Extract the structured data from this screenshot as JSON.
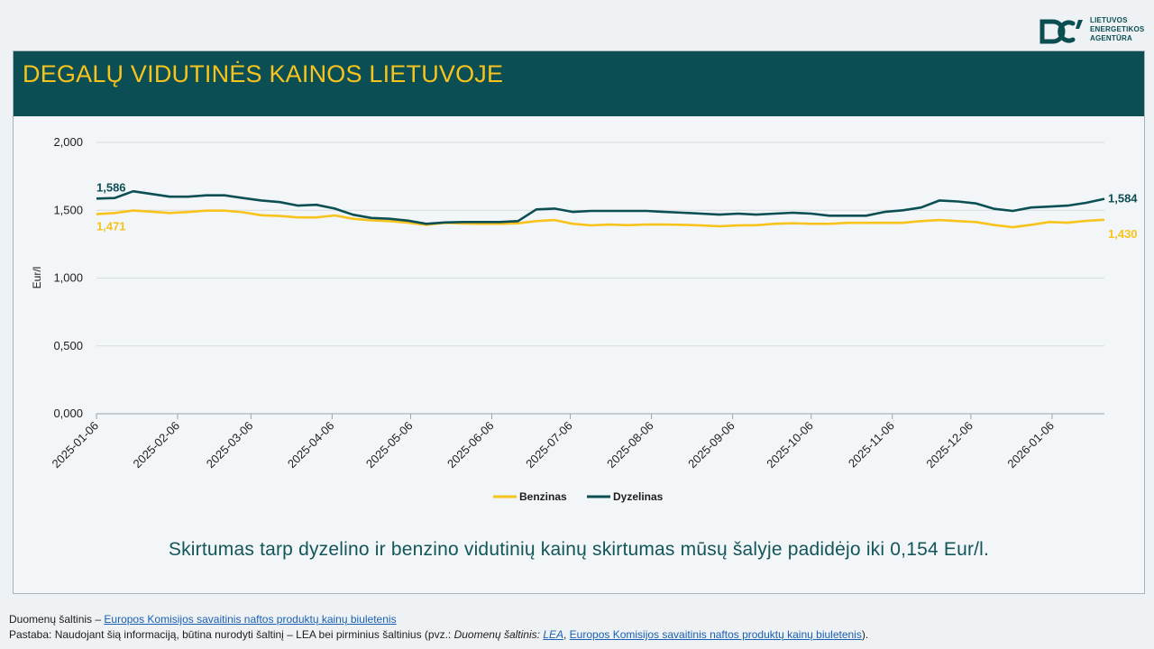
{
  "logo": {
    "brand_lines": [
      "LIETUVOS",
      "ENERGETIKOS",
      "AGENTŪRA"
    ],
    "icon": "lea-logo-icon",
    "color": "#0b4e52"
  },
  "header": {
    "title": "DEGALŲ VIDUTINĖS KAINOS LIETUVOJE"
  },
  "colors": {
    "header_bg": "#0b4f55",
    "title": "#f7c31c",
    "benzinas": "#f7c31c",
    "dyzelinas": "#0b4f55"
  },
  "chart_data": {
    "type": "line",
    "ylabel": "Eur/l",
    "ylim": [
      0,
      2
    ],
    "yticks": [
      "0,000",
      "0,500",
      "1,000",
      "1,500",
      "2,000"
    ],
    "x_ticks": [
      "2025-01-06",
      "2025-02-06",
      "2025-03-06",
      "2025-04-06",
      "2025-05-06",
      "2025-06-06",
      "2025-07-06",
      "2025-08-06",
      "2025-09-06",
      "2025-10-06",
      "2025-11-06",
      "2025-12-06",
      "2026-01-06"
    ],
    "x_start": "2025-01-06",
    "x_end": "2026-01-26",
    "grid": true,
    "legend_position": "bottom",
    "series": [
      {
        "name": "Benzinas",
        "color": "#f7c31c",
        "values": [
          1.471,
          1.48,
          1.498,
          1.49,
          1.48,
          1.487,
          1.497,
          1.497,
          1.485,
          1.463,
          1.458,
          1.447,
          1.447,
          1.462,
          1.437,
          1.425,
          1.42,
          1.408,
          1.393,
          1.407,
          1.402,
          1.4,
          1.4,
          1.404,
          1.42,
          1.428,
          1.4,
          1.389,
          1.395,
          1.39,
          1.395,
          1.395,
          1.393,
          1.388,
          1.382,
          1.388,
          1.39,
          1.4,
          1.404,
          1.4,
          1.4,
          1.407,
          1.407,
          1.407,
          1.407,
          1.42,
          1.428,
          1.42,
          1.413,
          1.391,
          1.375,
          1.393,
          1.413,
          1.408,
          1.422,
          1.43
        ],
        "start_label": "1,471",
        "end_label": "1,430"
      },
      {
        "name": "Dyzelinas",
        "color": "#0b4f55",
        "values": [
          1.586,
          1.59,
          1.64,
          1.62,
          1.6,
          1.6,
          1.61,
          1.61,
          1.59,
          1.572,
          1.56,
          1.534,
          1.54,
          1.512,
          1.467,
          1.443,
          1.437,
          1.423,
          1.4,
          1.41,
          1.413,
          1.413,
          1.413,
          1.42,
          1.506,
          1.512,
          1.488,
          1.495,
          1.495,
          1.495,
          1.495,
          1.488,
          1.482,
          1.475,
          1.468,
          1.475,
          1.468,
          1.475,
          1.482,
          1.475,
          1.46,
          1.46,
          1.46,
          1.488,
          1.5,
          1.52,
          1.572,
          1.565,
          1.55,
          1.51,
          1.495,
          1.52,
          1.527,
          1.534,
          1.555,
          1.584
        ],
        "start_label": "1,586",
        "end_label": "1,584"
      }
    ]
  },
  "summary": "Skirtumas tarp dyzelino ir benzino vidutinių kainų skirtumas mūsų šalyje padidėjo iki 0,154 Eur/l.",
  "footer": {
    "source_prefix": "Duomenų šaltinis – ",
    "source_link": "Europos Komisijos savaitinis naftos produktų kainų biuletenis",
    "note_prefix": "Pastaba: Naudojant šią informaciją, būtina nurodyti šaltinį – LEA bei pirminius šaltinius (pvz.: ",
    "note_em": "Duomenų šaltinis: ",
    "note_link_lea": "LEA",
    "note_sep": ", ",
    "note_link_ec": "Europos Komisijos savaitinis naftos produktų kainų biuletenis",
    "note_suffix": ")."
  }
}
